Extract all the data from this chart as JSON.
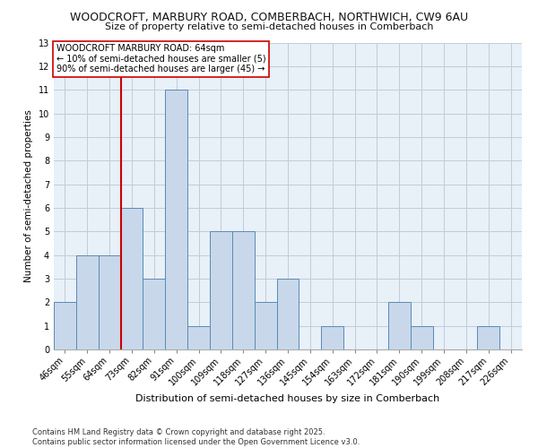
{
  "title_line1": "WOODCROFT, MARBURY ROAD, COMBERBACH, NORTHWICH, CW9 6AU",
  "title_line2": "Size of property relative to semi-detached houses in Comberbach",
  "xlabel": "Distribution of semi-detached houses by size in Comberbach",
  "ylabel": "Number of semi-detached properties",
  "footer_line1": "Contains HM Land Registry data © Crown copyright and database right 2025.",
  "footer_line2": "Contains public sector information licensed under the Open Government Licence v3.0.",
  "bin_labels": [
    "46sqm",
    "55sqm",
    "64sqm",
    "73sqm",
    "82sqm",
    "91sqm",
    "100sqm",
    "109sqm",
    "118sqm",
    "127sqm",
    "136sqm",
    "145sqm",
    "154sqm",
    "163sqm",
    "172sqm",
    "181sqm",
    "190sqm",
    "199sqm",
    "208sqm",
    "217sqm",
    "226sqm"
  ],
  "bar_values": [
    2,
    4,
    4,
    6,
    3,
    11,
    1,
    5,
    5,
    2,
    3,
    0,
    1,
    0,
    0,
    2,
    1,
    0,
    0,
    1,
    0
  ],
  "bar_color": "#c8d8ea",
  "bar_edge_color": "#5a8ab5",
  "vline_color": "#cc0000",
  "vline_x": 2.5,
  "ylim": [
    0,
    13
  ],
  "yticks": [
    0,
    1,
    2,
    3,
    4,
    5,
    6,
    7,
    8,
    9,
    10,
    11,
    12,
    13
  ],
  "annotation_text": "WOODCROFT MARBURY ROAD: 64sqm\n← 10% of semi-detached houses are smaller (5)\n90% of semi-detached houses are larger (45) →",
  "annotation_box_facecolor": "#ffffff",
  "annotation_box_edgecolor": "#cc0000",
  "bg_color": "#ffffff",
  "plot_bg_color": "#e8f0f8",
  "grid_color": "#c0ccd8",
  "title1_fontsize": 9.0,
  "title2_fontsize": 8.0,
  "ylabel_fontsize": 7.5,
  "xlabel_fontsize": 8.0,
  "tick_fontsize": 7.0,
  "annotation_fontsize": 7.0,
  "footer_fontsize": 6.0
}
